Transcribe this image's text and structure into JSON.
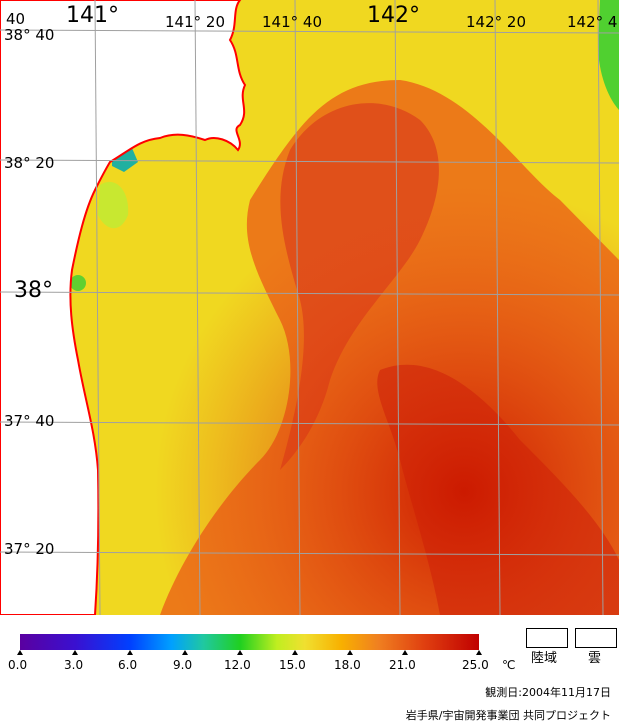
{
  "map": {
    "lon_labels": [
      "141°",
      "141° 20",
      "141° 40",
      "142°",
      "142° 20",
      "142° 4"
    ],
    "lat_labels": [
      "38° 40",
      "38° 20",
      "38°",
      "37° 40",
      "37° 20"
    ],
    "corner_label": "40",
    "colors": {
      "land": "#ffffff",
      "coast": "#ff0000",
      "grid": "#a0a0a0",
      "sea_warm": "#e8501a",
      "sea_mid": "#f29a10",
      "sea_cool": "#f0dc20",
      "sea_cold": "#40d030"
    }
  },
  "colorbar": {
    "tick_labels": [
      "0.0",
      "3.0",
      "6.0",
      "9.0",
      "12.0",
      "15.0",
      "18.0",
      "21.0",
      "25.0"
    ],
    "tick_values": [
      0,
      3,
      6,
      9,
      12,
      15,
      18,
      21,
      25
    ],
    "unit": "℃",
    "range": [
      0,
      25
    ]
  },
  "legend": {
    "land_label": "陸域",
    "cloud_label": "雲"
  },
  "footer": {
    "observation_date": "観測日:2004年11月17日",
    "credit": "岩手県/宇宙開発事業団 共同プロジェクト"
  }
}
